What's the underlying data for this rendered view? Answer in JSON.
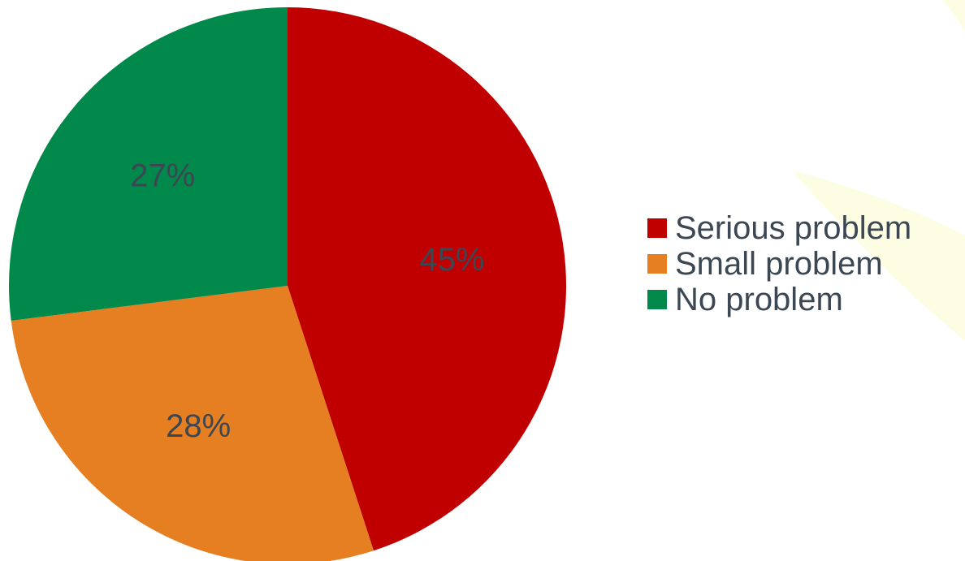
{
  "chart_data": {
    "type": "pie",
    "title": "",
    "slices": [
      {
        "name": "Serious problem",
        "value": 45,
        "label": "45%",
        "color": "#c00000"
      },
      {
        "name": "Small problem",
        "value": 28,
        "label": "28%",
        "color": "#e67e22"
      },
      {
        "name": "No problem",
        "value": 27,
        "label": "27%",
        "color": "#00894a"
      }
    ],
    "start_angle": "12 o'clock",
    "direction": "clockwise",
    "legend_position": "right"
  },
  "colors": {
    "label_text": "#3b4753",
    "decoration": "#fdfde3"
  }
}
